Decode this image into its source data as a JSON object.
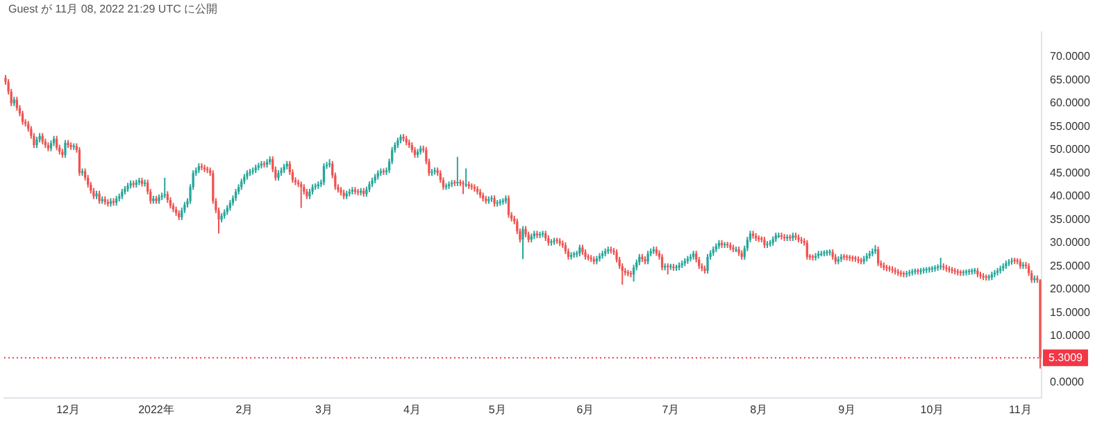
{
  "chart_data": {
    "type": "candlestick",
    "title": "Guest が 11月 08, 2022 21:29 UTC に公開",
    "ylim": [
      -3.3,
      75.4
    ],
    "yticks": [
      {
        "value": 0,
        "label": "0.0000"
      },
      {
        "value": 10,
        "label": "10.0000"
      },
      {
        "value": 15,
        "label": "15.0000"
      },
      {
        "value": 20,
        "label": "20.0000"
      },
      {
        "value": 25,
        "label": "25.0000"
      },
      {
        "value": 30,
        "label": "30.0000"
      },
      {
        "value": 35,
        "label": "35.0000"
      },
      {
        "value": 40,
        "label": "40.0000"
      },
      {
        "value": 45,
        "label": "45.0000"
      },
      {
        "value": 50,
        "label": "50.0000"
      },
      {
        "value": 55,
        "label": "55.0000"
      },
      {
        "value": 60,
        "label": "60.0000"
      },
      {
        "value": 65,
        "label": "65.0000"
      },
      {
        "value": 70,
        "label": "70.0000"
      }
    ],
    "grid": false,
    "legend": false,
    "ref_lines": [
      {
        "axis": "y",
        "value": 5.3009,
        "label": "5.3009",
        "color": "#f23645",
        "line_style": "dotted"
      }
    ],
    "categories": [
      null,
      null,
      null,
      null,
      null,
      null,
      null,
      null,
      null,
      null,
      null,
      null,
      null,
      null,
      null,
      null,
      null,
      null,
      null,
      null,
      null,
      null,
      "12月",
      null,
      null,
      null,
      null,
      null,
      null,
      null,
      null,
      null,
      null,
      null,
      null,
      null,
      null,
      null,
      null,
      null,
      null,
      null,
      null,
      null,
      null,
      null,
      null,
      null,
      null,
      null,
      null,
      null,
      null,
      "2022年",
      null,
      null,
      null,
      null,
      null,
      null,
      null,
      null,
      null,
      null,
      null,
      null,
      null,
      null,
      null,
      null,
      null,
      null,
      null,
      null,
      null,
      null,
      null,
      null,
      null,
      null,
      null,
      null,
      null,
      null,
      "2月",
      null,
      null,
      null,
      null,
      null,
      null,
      null,
      null,
      null,
      null,
      null,
      null,
      null,
      null,
      null,
      null,
      null,
      null,
      null,
      null,
      null,
      null,
      null,
      null,
      null,
      null,
      null,
      "3月",
      null,
      null,
      null,
      null,
      null,
      null,
      null,
      null,
      null,
      null,
      null,
      null,
      null,
      null,
      null,
      null,
      null,
      null,
      null,
      null,
      null,
      null,
      null,
      null,
      null,
      null,
      null,
      null,
      null,
      null,
      "4月",
      null,
      null,
      null,
      null,
      null,
      null,
      null,
      null,
      null,
      null,
      null,
      null,
      null,
      null,
      null,
      null,
      null,
      null,
      null,
      null,
      null,
      null,
      null,
      null,
      null,
      null,
      null,
      null,
      null,
      "5月",
      null,
      null,
      null,
      null,
      null,
      null,
      null,
      null,
      null,
      null,
      null,
      null,
      null,
      null,
      null,
      null,
      null,
      null,
      null,
      null,
      null,
      null,
      null,
      null,
      null,
      null,
      null,
      null,
      null,
      null,
      "6月",
      null,
      null,
      null,
      null,
      null,
      null,
      null,
      null,
      null,
      null,
      null,
      null,
      null,
      null,
      null,
      null,
      null,
      null,
      null,
      null,
      null,
      null,
      null,
      null,
      null,
      null,
      null,
      null,
      null,
      "7月",
      null,
      null,
      null,
      null,
      null,
      null,
      null,
      null,
      null,
      null,
      null,
      null,
      null,
      null,
      null,
      null,
      null,
      null,
      null,
      null,
      null,
      null,
      null,
      null,
      null,
      null,
      null,
      null,
      null,
      null,
      "8月",
      null,
      null,
      null,
      null,
      null,
      null,
      null,
      null,
      null,
      null,
      null,
      null,
      null,
      null,
      null,
      null,
      null,
      null,
      null,
      null,
      null,
      null,
      null,
      null,
      null,
      null,
      null,
      null,
      null,
      null,
      "9月",
      null,
      null,
      null,
      null,
      null,
      null,
      null,
      null,
      null,
      null,
      null,
      null,
      null,
      null,
      null,
      null,
      null,
      null,
      null,
      null,
      null,
      null,
      null,
      null,
      null,
      null,
      null,
      null,
      null,
      "10月",
      null,
      null,
      null,
      null,
      null,
      null,
      null,
      null,
      null,
      null,
      null,
      null,
      null,
      null,
      null,
      null,
      null,
      null,
      null,
      null,
      null,
      null,
      null,
      null,
      null,
      null,
      null,
      null,
      null,
      null,
      "11月",
      null,
      null,
      null,
      null,
      null,
      null,
      null
    ],
    "ohlc": [
      [
        65.5,
        66.1,
        64.0,
        64.6
      ],
      [
        64.6,
        65.2,
        61.9,
        62.5
      ],
      [
        62.5,
        63.1,
        59.4,
        60.0
      ],
      [
        60.0,
        61.4,
        59.4,
        60.8
      ],
      [
        60.8,
        61.4,
        58.4,
        59.0
      ],
      [
        59.0,
        59.6,
        57.2,
        57.8
      ],
      [
        57.8,
        58.4,
        55.4,
        56.0
      ],
      [
        56.0,
        56.6,
        55.0,
        55.6
      ],
      [
        55.6,
        56.2,
        53.9,
        54.5
      ],
      [
        54.5,
        55.1,
        52.4,
        53.0
      ],
      [
        53.0,
        53.6,
        50.4,
        51.0
      ],
      [
        51.0,
        52.8,
        50.4,
        52.2
      ],
      [
        52.2,
        53.6,
        51.6,
        53.0
      ],
      [
        53.0,
        53.6,
        51.2,
        51.8
      ],
      [
        51.8,
        52.4,
        50.4,
        51.0
      ],
      [
        51.0,
        51.6,
        49.7,
        50.3
      ],
      [
        50.3,
        52.0,
        49.7,
        51.4
      ],
      [
        51.4,
        53.0,
        50.8,
        52.4
      ],
      [
        52.4,
        53.0,
        49.9,
        50.5
      ],
      [
        50.5,
        51.1,
        49.0,
        49.6
      ],
      [
        49.6,
        50.2,
        48.3,
        48.9
      ],
      [
        48.9,
        52.1,
        48.3,
        51.5
      ],
      [
        51.5,
        52.1,
        50.4,
        51.0
      ],
      [
        51.0,
        51.6,
        50.0,
        50.6
      ],
      [
        50.6,
        51.4,
        50.0,
        50.8
      ],
      [
        50.8,
        51.4,
        49.4,
        50.0
      ],
      [
        50.0,
        50.6,
        44.4,
        45.0
      ],
      [
        45.0,
        46.0,
        44.4,
        45.4
      ],
      [
        45.4,
        46.0,
        43.4,
        44.0
      ],
      [
        44.0,
        44.6,
        41.9,
        42.5
      ],
      [
        42.5,
        43.1,
        40.6,
        41.2
      ],
      [
        41.2,
        41.8,
        39.4,
        40.0
      ],
      [
        40.0,
        41.2,
        39.4,
        40.6
      ],
      [
        40.6,
        41.2,
        38.4,
        39.0
      ],
      [
        39.0,
        40.0,
        38.4,
        39.4
      ],
      [
        39.4,
        40.0,
        38.2,
        38.8
      ],
      [
        38.8,
        39.4,
        37.8,
        38.4
      ],
      [
        38.4,
        39.6,
        37.8,
        39.0
      ],
      [
        39.0,
        39.6,
        38.0,
        38.6
      ],
      [
        38.6,
        40.1,
        38.0,
        39.5
      ],
      [
        39.5,
        40.6,
        38.9,
        40.0
      ],
      [
        40.0,
        41.6,
        39.4,
        41.0
      ],
      [
        41.0,
        42.2,
        40.4,
        41.6
      ],
      [
        41.6,
        42.9,
        41.0,
        42.3
      ],
      [
        42.3,
        43.4,
        41.7,
        42.8
      ],
      [
        42.8,
        43.4,
        41.9,
        42.5
      ],
      [
        42.5,
        43.6,
        41.9,
        43.0
      ],
      [
        43.0,
        44.0,
        42.4,
        43.4
      ],
      [
        43.4,
        44.0,
        42.1,
        42.7
      ],
      [
        42.7,
        43.6,
        42.1,
        43.0
      ],
      [
        43.0,
        43.6,
        40.4,
        41.0
      ],
      [
        41.0,
        41.6,
        38.4,
        39.0
      ],
      [
        39.0,
        40.1,
        38.4,
        39.5
      ],
      [
        39.5,
        40.1,
        38.4,
        39.0
      ],
      [
        39.0,
        40.4,
        38.4,
        39.8
      ],
      [
        39.8,
        40.8,
        39.2,
        40.2
      ],
      [
        40.2,
        44.0,
        39.6,
        40.5
      ],
      [
        40.5,
        41.1,
        38.6,
        39.2
      ],
      [
        39.2,
        39.8,
        37.4,
        38.0
      ],
      [
        38.0,
        38.6,
        36.6,
        37.2
      ],
      [
        37.2,
        37.8,
        35.8,
        36.4
      ],
      [
        36.4,
        37.0,
        34.9,
        35.5
      ],
      [
        35.5,
        37.6,
        34.9,
        37.0
      ],
      [
        37.0,
        38.8,
        36.4,
        38.2
      ],
      [
        38.2,
        39.6,
        37.6,
        39.0
      ],
      [
        39.0,
        42.6,
        38.4,
        42.0
      ],
      [
        42.0,
        45.6,
        41.4,
        45.0
      ],
      [
        45.0,
        46.2,
        44.4,
        45.6
      ],
      [
        45.6,
        47.1,
        45.0,
        46.5
      ],
      [
        46.5,
        47.1,
        45.6,
        46.2
      ],
      [
        46.2,
        46.8,
        45.2,
        45.8
      ],
      [
        45.8,
        46.4,
        45.0,
        45.6
      ],
      [
        45.6,
        46.2,
        44.4,
        45.0
      ],
      [
        45.0,
        45.6,
        38.4,
        39.0
      ],
      [
        39.0,
        39.6,
        36.4,
        37.0
      ],
      [
        37.0,
        37.6,
        32.0,
        35.0
      ],
      [
        35.0,
        36.4,
        34.4,
        35.8
      ],
      [
        35.8,
        37.2,
        35.2,
        36.6
      ],
      [
        36.6,
        38.1,
        36.0,
        37.5
      ],
      [
        37.5,
        39.2,
        36.9,
        38.6
      ],
      [
        38.6,
        40.2,
        38.0,
        39.6
      ],
      [
        39.6,
        41.6,
        39.0,
        41.0
      ],
      [
        41.0,
        42.6,
        40.4,
        42.0
      ],
      [
        42.0,
        43.8,
        41.4,
        43.2
      ],
      [
        43.2,
        44.8,
        42.6,
        44.2
      ],
      [
        44.2,
        45.6,
        43.6,
        45.0
      ],
      [
        45.0,
        45.9,
        44.4,
        45.3
      ],
      [
        45.3,
        46.2,
        44.7,
        45.6
      ],
      [
        45.6,
        46.8,
        45.0,
        46.2
      ],
      [
        46.2,
        47.2,
        45.6,
        46.6
      ],
      [
        46.6,
        47.6,
        46.0,
        47.0
      ],
      [
        47.0,
        47.6,
        46.2,
        46.8
      ],
      [
        46.8,
        48.0,
        46.2,
        47.4
      ],
      [
        47.4,
        48.6,
        46.8,
        48.0
      ],
      [
        48.0,
        48.6,
        45.2,
        45.8
      ],
      [
        45.8,
        46.4,
        43.4,
        44.0
      ],
      [
        44.0,
        45.6,
        43.4,
        45.0
      ],
      [
        45.0,
        46.2,
        44.4,
        45.6
      ],
      [
        45.6,
        47.0,
        45.0,
        46.4
      ],
      [
        46.4,
        47.6,
        45.8,
        47.0
      ],
      [
        47.0,
        47.6,
        44.6,
        45.2
      ],
      [
        45.2,
        45.8,
        42.9,
        43.5
      ],
      [
        43.5,
        44.1,
        42.4,
        43.0
      ],
      [
        43.0,
        43.6,
        42.0,
        42.6
      ],
      [
        42.6,
        43.2,
        37.5,
        42.0
      ],
      [
        42.0,
        42.6,
        40.4,
        41.0
      ],
      [
        41.0,
        41.6,
        39.4,
        40.0
      ],
      [
        40.0,
        41.6,
        39.4,
        41.0
      ],
      [
        41.0,
        42.6,
        40.4,
        42.0
      ],
      [
        42.0,
        42.8,
        41.4,
        42.2
      ],
      [
        42.2,
        43.2,
        41.6,
        42.6
      ],
      [
        42.6,
        43.6,
        42.0,
        43.0
      ],
      [
        43.0,
        47.1,
        42.4,
        46.5
      ],
      [
        46.5,
        47.4,
        45.9,
        46.8
      ],
      [
        46.8,
        48.0,
        46.2,
        47.0
      ],
      [
        47.0,
        47.6,
        43.9,
        44.5
      ],
      [
        44.5,
        45.1,
        41.4,
        42.0
      ],
      [
        42.0,
        42.6,
        40.8,
        41.4
      ],
      [
        41.4,
        42.0,
        40.2,
        40.8
      ],
      [
        40.8,
        41.4,
        39.4,
        40.0
      ],
      [
        40.0,
        41.2,
        39.4,
        40.6
      ],
      [
        40.6,
        41.6,
        40.0,
        41.0
      ],
      [
        41.0,
        42.0,
        40.4,
        41.4
      ],
      [
        41.4,
        42.0,
        40.4,
        41.0
      ],
      [
        41.0,
        41.6,
        40.2,
        40.8
      ],
      [
        40.8,
        41.8,
        40.2,
        41.2
      ],
      [
        41.2,
        41.8,
        39.9,
        40.5
      ],
      [
        40.5,
        42.1,
        39.9,
        41.5
      ],
      [
        41.5,
        43.2,
        40.9,
        42.6
      ],
      [
        42.6,
        44.0,
        42.0,
        43.4
      ],
      [
        43.4,
        44.8,
        42.8,
        44.2
      ],
      [
        44.2,
        45.6,
        43.6,
        45.0
      ],
      [
        45.0,
        46.0,
        44.4,
        45.4
      ],
      [
        45.4,
        46.0,
        44.6,
        45.2
      ],
      [
        45.2,
        46.2,
        44.6,
        45.6
      ],
      [
        45.6,
        48.1,
        45.0,
        47.5
      ],
      [
        47.5,
        50.6,
        46.9,
        50.0
      ],
      [
        50.0,
        51.6,
        49.4,
        51.0
      ],
      [
        51.0,
        52.6,
        50.4,
        52.0
      ],
      [
        52.0,
        53.3,
        51.4,
        52.8
      ],
      [
        52.8,
        53.4,
        51.8,
        52.4
      ],
      [
        52.4,
        53.0,
        51.0,
        51.6
      ],
      [
        51.6,
        52.2,
        50.4,
        51.0
      ],
      [
        51.0,
        51.6,
        49.4,
        50.0
      ],
      [
        50.0,
        50.6,
        48.3,
        48.9
      ],
      [
        48.9,
        50.2,
        48.3,
        49.6
      ],
      [
        49.6,
        50.9,
        49.0,
        50.3
      ],
      [
        50.3,
        50.9,
        49.4,
        50.0
      ],
      [
        50.0,
        50.6,
        46.9,
        47.5
      ],
      [
        47.5,
        48.1,
        44.4,
        45.0
      ],
      [
        45.0,
        45.9,
        44.4,
        45.3
      ],
      [
        45.3,
        46.2,
        44.7,
        45.6
      ],
      [
        45.6,
        46.2,
        44.4,
        45.0
      ],
      [
        45.0,
        45.6,
        42.9,
        43.5
      ],
      [
        43.5,
        44.1,
        41.4,
        42.0
      ],
      [
        42.0,
        42.8,
        41.4,
        42.2
      ],
      [
        42.2,
        43.2,
        41.6,
        42.6
      ],
      [
        42.6,
        43.5,
        42.0,
        42.9
      ],
      [
        42.9,
        43.5,
        42.2,
        42.8
      ],
      [
        42.8,
        48.5,
        42.2,
        43.0
      ],
      [
        43.0,
        43.6,
        42.2,
        42.8
      ],
      [
        42.8,
        43.4,
        40.5,
        42.6
      ],
      [
        42.6,
        46.0,
        42.0,
        42.6
      ],
      [
        42.6,
        43.2,
        41.6,
        42.2
      ],
      [
        42.2,
        42.8,
        41.4,
        42.0
      ],
      [
        42.0,
        42.6,
        41.0,
        41.6
      ],
      [
        41.6,
        42.2,
        40.4,
        41.0
      ],
      [
        41.0,
        41.6,
        39.6,
        40.2
      ],
      [
        40.2,
        40.8,
        38.9,
        39.5
      ],
      [
        39.5,
        40.1,
        38.4,
        39.0
      ],
      [
        39.0,
        40.0,
        38.4,
        39.4
      ],
      [
        39.4,
        40.2,
        38.8,
        39.6
      ],
      [
        39.6,
        40.2,
        37.8,
        38.4
      ],
      [
        38.4,
        39.2,
        37.8,
        38.6
      ],
      [
        38.6,
        39.4,
        38.0,
        38.8
      ],
      [
        38.8,
        39.6,
        38.2,
        39.0
      ],
      [
        39.0,
        40.2,
        38.4,
        39.6
      ],
      [
        39.6,
        40.2,
        35.4,
        36.0
      ],
      [
        36.0,
        36.6,
        34.6,
        35.2
      ],
      [
        35.2,
        35.8,
        34.0,
        34.6
      ],
      [
        34.6,
        35.2,
        31.9,
        32.5
      ],
      [
        32.5,
        33.1,
        30.1,
        30.7
      ],
      [
        30.7,
        33.6,
        26.5,
        33.0
      ],
      [
        33.0,
        33.6,
        31.2,
        31.8
      ],
      [
        31.8,
        32.4,
        30.1,
        30.7
      ],
      [
        30.7,
        32.0,
        30.1,
        31.4
      ],
      [
        31.4,
        32.6,
        30.8,
        32.0
      ],
      [
        32.0,
        32.6,
        31.0,
        31.6
      ],
      [
        31.6,
        32.4,
        31.0,
        31.8
      ],
      [
        31.8,
        32.6,
        31.2,
        32.0
      ],
      [
        32.0,
        32.6,
        30.4,
        31.0
      ],
      [
        31.0,
        31.6,
        29.4,
        30.0
      ],
      [
        30.0,
        30.8,
        29.4,
        30.2
      ],
      [
        30.2,
        31.1,
        29.6,
        30.5
      ],
      [
        30.5,
        31.1,
        29.8,
        30.4
      ],
      [
        30.4,
        31.0,
        29.3,
        29.9
      ],
      [
        29.9,
        30.5,
        28.9,
        29.5
      ],
      [
        29.5,
        30.1,
        27.6,
        28.2
      ],
      [
        28.2,
        28.8,
        26.4,
        27.0
      ],
      [
        27.0,
        28.0,
        26.4,
        27.4
      ],
      [
        27.4,
        28.1,
        26.8,
        27.5
      ],
      [
        27.5,
        28.3,
        26.9,
        27.7
      ],
      [
        27.7,
        29.6,
        27.1,
        29.0
      ],
      [
        29.0,
        29.6,
        27.4,
        28.0
      ],
      [
        28.0,
        28.6,
        26.4,
        27.0
      ],
      [
        27.0,
        27.6,
        26.2,
        26.8
      ],
      [
        26.8,
        27.4,
        25.9,
        26.5
      ],
      [
        26.5,
        27.1,
        25.4,
        26.0
      ],
      [
        26.0,
        27.2,
        25.4,
        26.6
      ],
      [
        26.6,
        27.8,
        26.0,
        27.2
      ],
      [
        27.2,
        28.3,
        26.6,
        27.7
      ],
      [
        27.7,
        28.8,
        27.1,
        28.2
      ],
      [
        28.2,
        29.2,
        27.6,
        28.6
      ],
      [
        28.6,
        29.2,
        27.7,
        28.3
      ],
      [
        28.3,
        28.9,
        27.4,
        28.0
      ],
      [
        28.0,
        28.6,
        25.8,
        26.4
      ],
      [
        26.4,
        27.0,
        24.4,
        25.0
      ],
      [
        25.0,
        25.6,
        21.0,
        24.0
      ],
      [
        24.0,
        24.6,
        23.0,
        23.6
      ],
      [
        23.6,
        24.2,
        22.8,
        23.4
      ],
      [
        23.4,
        24.0,
        22.6,
        23.2
      ],
      [
        23.2,
        25.3,
        21.7,
        24.7
      ],
      [
        24.7,
        26.4,
        24.1,
        25.8
      ],
      [
        25.8,
        27.6,
        25.2,
        27.0
      ],
      [
        27.0,
        27.6,
        25.9,
        26.5
      ],
      [
        26.5,
        27.1,
        25.4,
        26.0
      ],
      [
        26.0,
        28.3,
        25.4,
        27.7
      ],
      [
        27.7,
        28.8,
        27.1,
        28.2
      ],
      [
        28.2,
        29.2,
        27.6,
        28.6
      ],
      [
        28.6,
        29.2,
        27.2,
        27.8
      ],
      [
        27.8,
        28.4,
        26.4,
        27.0
      ],
      [
        27.0,
        27.6,
        24.1,
        24.7
      ],
      [
        24.7,
        25.6,
        24.1,
        25.0
      ],
      [
        25.0,
        25.6,
        23.2,
        24.8
      ],
      [
        24.8,
        25.5,
        24.2,
        24.9
      ],
      [
        24.9,
        25.5,
        24.0,
        24.6
      ],
      [
        24.6,
        25.3,
        24.0,
        24.7
      ],
      [
        24.7,
        25.8,
        24.1,
        25.2
      ],
      [
        25.2,
        26.2,
        24.6,
        25.6
      ],
      [
        25.6,
        26.7,
        25.0,
        26.1
      ],
      [
        26.1,
        27.2,
        25.5,
        26.6
      ],
      [
        26.6,
        27.6,
        26.0,
        27.0
      ],
      [
        27.0,
        28.3,
        26.4,
        27.7
      ],
      [
        27.7,
        28.3,
        25.8,
        26.4
      ],
      [
        26.4,
        27.0,
        24.4,
        25.0
      ],
      [
        25.0,
        25.6,
        23.9,
        24.5
      ],
      [
        24.5,
        25.1,
        23.4,
        24.0
      ],
      [
        24.0,
        27.6,
        23.4,
        27.0
      ],
      [
        27.0,
        28.4,
        26.4,
        27.8
      ],
      [
        27.8,
        29.2,
        27.2,
        28.6
      ],
      [
        28.6,
        29.9,
        28.0,
        29.3
      ],
      [
        29.3,
        30.6,
        28.7,
        30.0
      ],
      [
        30.0,
        30.6,
        28.9,
        29.5
      ],
      [
        29.5,
        30.2,
        28.9,
        29.6
      ],
      [
        29.6,
        30.2,
        28.9,
        29.5
      ],
      [
        29.5,
        30.1,
        28.4,
        29.0
      ],
      [
        29.0,
        29.6,
        28.0,
        28.6
      ],
      [
        28.6,
        29.2,
        28.0,
        28.6
      ],
      [
        28.6,
        29.2,
        27.2,
        27.8
      ],
      [
        27.8,
        28.4,
        26.4,
        27.0
      ],
      [
        27.0,
        29.4,
        26.4,
        28.8
      ],
      [
        28.8,
        31.3,
        28.2,
        30.7
      ],
      [
        30.7,
        32.6,
        30.1,
        32.0
      ],
      [
        32.0,
        32.6,
        30.9,
        31.5
      ],
      [
        31.5,
        32.1,
        30.4,
        31.0
      ],
      [
        31.0,
        31.6,
        30.2,
        30.8
      ],
      [
        30.8,
        31.4,
        30.1,
        30.7
      ],
      [
        30.7,
        31.3,
        28.9,
        29.5
      ],
      [
        29.5,
        30.4,
        28.9,
        29.8
      ],
      [
        29.8,
        30.6,
        29.2,
        30.0
      ],
      [
        30.0,
        31.4,
        29.4,
        30.8
      ],
      [
        30.8,
        32.2,
        30.2,
        31.6
      ],
      [
        31.6,
        32.2,
        31.0,
        31.6
      ],
      [
        31.6,
        32.2,
        30.7,
        31.3
      ],
      [
        31.3,
        31.9,
        30.4,
        31.0
      ],
      [
        31.0,
        31.8,
        30.4,
        31.2
      ],
      [
        31.2,
        31.8,
        30.4,
        31.0
      ],
      [
        31.0,
        32.2,
        30.4,
        31.6
      ],
      [
        31.6,
        32.2,
        30.6,
        31.2
      ],
      [
        31.2,
        31.8,
        30.1,
        30.7
      ],
      [
        30.7,
        31.3,
        29.8,
        30.4
      ],
      [
        30.4,
        31.0,
        29.4,
        30.0
      ],
      [
        30.0,
        30.6,
        26.4,
        27.0
      ],
      [
        27.0,
        27.6,
        26.3,
        26.9
      ],
      [
        26.9,
        27.5,
        26.2,
        26.8
      ],
      [
        26.8,
        27.8,
        26.2,
        27.2
      ],
      [
        27.2,
        28.3,
        26.6,
        27.7
      ],
      [
        27.7,
        28.3,
        27.1,
        27.7
      ],
      [
        27.7,
        28.4,
        27.1,
        27.8
      ],
      [
        27.8,
        28.5,
        27.2,
        27.9
      ],
      [
        27.9,
        28.6,
        27.3,
        28.0
      ],
      [
        28.0,
        28.6,
        26.4,
        27.0
      ],
      [
        27.0,
        27.6,
        25.4,
        26.0
      ],
      [
        26.0,
        27.1,
        25.4,
        26.5
      ],
      [
        26.5,
        27.6,
        25.9,
        27.0
      ],
      [
        27.0,
        27.6,
        26.3,
        26.9
      ],
      [
        26.9,
        27.5,
        26.2,
        26.8
      ],
      [
        26.8,
        27.4,
        26.1,
        26.7
      ],
      [
        26.7,
        27.3,
        26.0,
        26.6
      ],
      [
        26.6,
        27.2,
        25.9,
        26.5
      ],
      [
        26.5,
        27.1,
        25.6,
        26.2
      ],
      [
        26.2,
        26.8,
        25.4,
        26.0
      ],
      [
        26.0,
        27.2,
        25.4,
        26.6
      ],
      [
        26.6,
        27.8,
        26.0,
        27.2
      ],
      [
        27.2,
        28.3,
        26.6,
        27.7
      ],
      [
        27.7,
        28.8,
        27.1,
        28.2
      ],
      [
        28.2,
        29.5,
        27.6,
        28.6
      ],
      [
        28.6,
        29.2,
        25.0,
        25.6
      ],
      [
        25.6,
        26.2,
        24.6,
        25.2
      ],
      [
        25.2,
        25.8,
        24.1,
        24.7
      ],
      [
        24.7,
        25.3,
        23.9,
        24.5
      ],
      [
        24.5,
        25.1,
        23.8,
        24.4
      ],
      [
        24.4,
        25.0,
        23.5,
        24.1
      ],
      [
        24.1,
        24.7,
        23.2,
        23.8
      ],
      [
        23.8,
        24.4,
        22.9,
        23.5
      ],
      [
        23.5,
        24.1,
        22.7,
        23.3
      ],
      [
        23.3,
        23.9,
        22.6,
        23.2
      ],
      [
        23.2,
        24.0,
        22.6,
        23.4
      ],
      [
        23.4,
        24.2,
        22.8,
        23.6
      ],
      [
        23.6,
        24.4,
        23.0,
        23.8
      ],
      [
        23.8,
        24.5,
        23.2,
        23.9
      ],
      [
        23.9,
        24.5,
        23.2,
        23.8
      ],
      [
        23.8,
        24.6,
        23.2,
        24.0
      ],
      [
        24.0,
        24.7,
        23.4,
        24.1
      ],
      [
        24.1,
        24.8,
        23.5,
        24.2
      ],
      [
        24.2,
        24.9,
        23.6,
        24.3
      ],
      [
        24.3,
        25.0,
        23.7,
        24.4
      ],
      [
        24.4,
        25.2,
        23.8,
        24.6
      ],
      [
        24.6,
        25.4,
        24.0,
        24.8
      ],
      [
        24.8,
        26.8,
        24.2,
        25.0
      ],
      [
        25.0,
        25.6,
        24.1,
        24.7
      ],
      [
        24.7,
        25.3,
        23.8,
        24.4
      ],
      [
        24.4,
        25.0,
        23.6,
        24.2
      ],
      [
        24.2,
        24.8,
        23.4,
        24.0
      ],
      [
        24.0,
        24.6,
        23.2,
        23.8
      ],
      [
        23.8,
        24.4,
        23.0,
        23.6
      ],
      [
        23.6,
        24.2,
        22.9,
        23.5
      ],
      [
        23.5,
        24.2,
        22.9,
        23.6
      ],
      [
        23.6,
        24.3,
        23.0,
        23.7
      ],
      [
        23.7,
        24.4,
        23.1,
        23.8
      ],
      [
        23.8,
        24.5,
        23.2,
        23.9
      ],
      [
        23.9,
        24.6,
        23.3,
        24.0
      ],
      [
        24.0,
        24.6,
        22.6,
        23.2
      ],
      [
        23.2,
        23.8,
        22.3,
        22.9
      ],
      [
        22.9,
        23.5,
        22.0,
        22.6
      ],
      [
        22.6,
        23.2,
        21.9,
        22.5
      ],
      [
        22.5,
        23.2,
        21.9,
        22.6
      ],
      [
        22.6,
        23.8,
        22.0,
        23.2
      ],
      [
        23.2,
        24.2,
        22.6,
        23.6
      ],
      [
        23.6,
        24.6,
        23.0,
        24.0
      ],
      [
        24.0,
        25.1,
        23.4,
        24.5
      ],
      [
        24.5,
        25.6,
        23.9,
        25.0
      ],
      [
        25.0,
        26.2,
        24.4,
        25.6
      ],
      [
        25.6,
        26.5,
        25.0,
        25.9
      ],
      [
        25.9,
        26.8,
        25.3,
        26.2
      ],
      [
        26.2,
        26.8,
        25.5,
        26.1
      ],
      [
        26.1,
        26.7,
        25.4,
        26.0
      ],
      [
        26.0,
        26.6,
        24.4,
        25.0
      ],
      [
        25.0,
        25.9,
        24.4,
        25.3
      ],
      [
        25.3,
        25.9,
        24.4,
        25.0
      ],
      [
        25.0,
        25.6,
        22.9,
        23.5
      ],
      [
        23.5,
        24.1,
        21.4,
        22.0
      ],
      [
        22.0,
        23.0,
        21.4,
        22.4
      ],
      [
        22.4,
        23.0,
        21.4,
        22.0
      ],
      [
        22.0,
        22.2,
        3.0,
        5.3009
      ]
    ]
  }
}
